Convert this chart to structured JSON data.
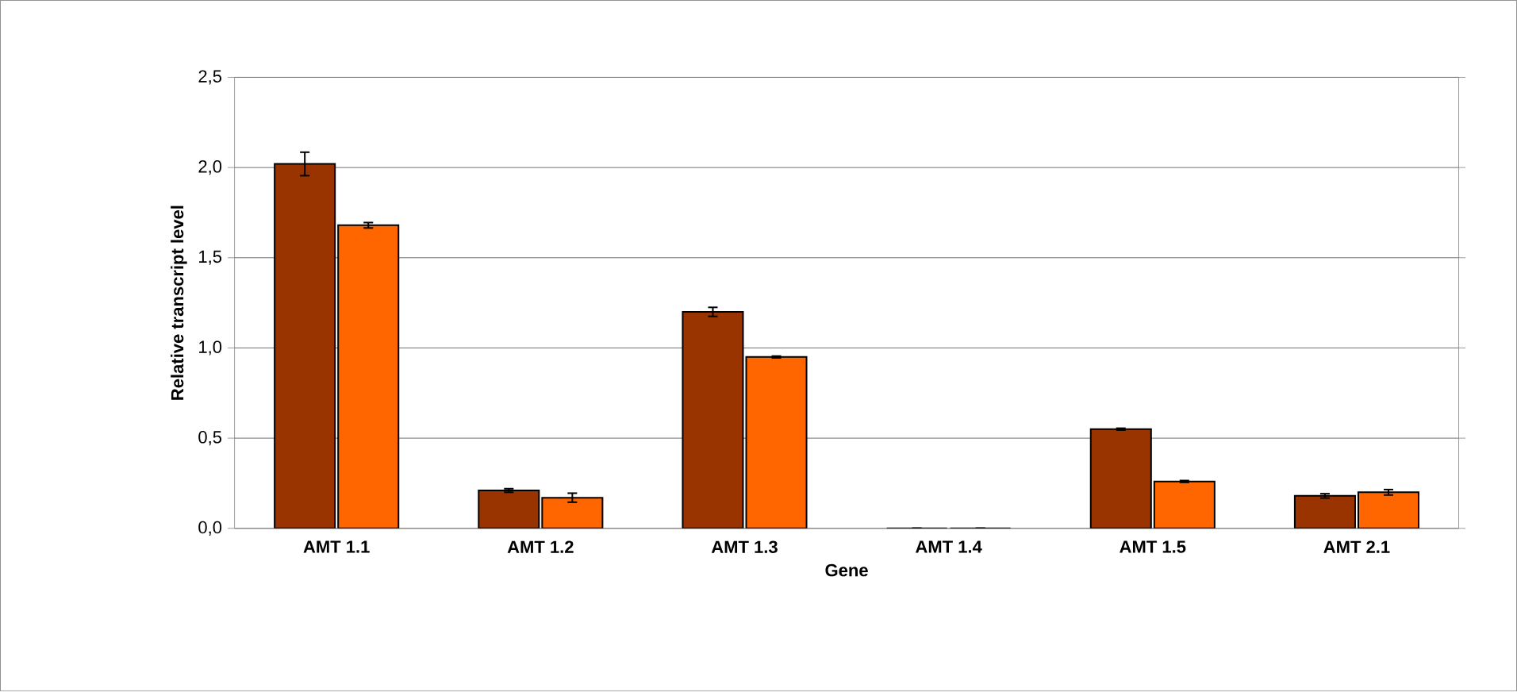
{
  "chart_data": {
    "type": "bar",
    "xlabel": "Gene",
    "ylabel": "Relative transcript level",
    "categories": [
      "AMT 1.1",
      "AMT 1.2",
      "AMT 1.3",
      "AMT 1.4",
      "AMT 1.5",
      "AMT 2.1"
    ],
    "series": [
      {
        "color": "#993300",
        "values": [
          2.02,
          0.21,
          1.2,
          0,
          0.55,
          0.18
        ],
        "errors": [
          0.065,
          0.01,
          0.025,
          0,
          0.005,
          0.012
        ]
      },
      {
        "color": "#ff6600",
        "values": [
          1.68,
          0.17,
          0.95,
          0,
          0.26,
          0.2
        ],
        "errors": [
          0.015,
          0.025,
          0.005,
          0,
          0.005,
          0.015
        ]
      }
    ],
    "ylim": [
      0,
      2.5
    ],
    "yticks": [
      {
        "value": 0,
        "label": "0,0"
      },
      {
        "value": 0.5,
        "label": "0,5"
      },
      {
        "value": 1,
        "label": "1,0"
      },
      {
        "value": 1.5,
        "label": "1,5"
      },
      {
        "value": 2,
        "label": "2,0"
      },
      {
        "value": 2.5,
        "label": "2,5"
      }
    ],
    "grid": "y"
  }
}
